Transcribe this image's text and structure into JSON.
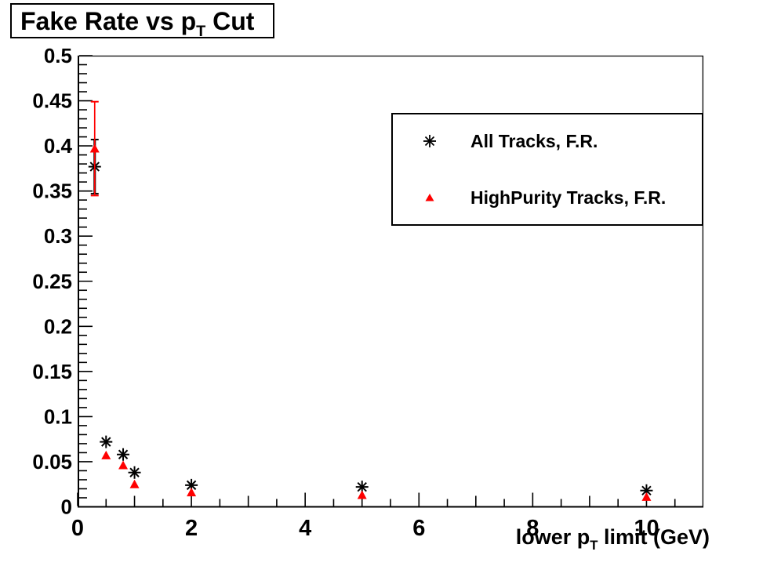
{
  "title": {
    "pre": "Fake Rate vs p",
    "sub": "T",
    "post": " Cut"
  },
  "x_axis_title": {
    "pre": "lower p",
    "sub": "T",
    "post": " limit (GeV)"
  },
  "colors": {
    "background": "#ffffff",
    "frame": "#000000",
    "series_all_tracks": "#000000",
    "series_highpurity": "#ff0000"
  },
  "chart_data": {
    "type": "scatter",
    "title": "Fake Rate vs p_T Cut",
    "xlabel": "lower p_T limit (GeV)",
    "ylabel": "",
    "xlim": [
      0,
      11
    ],
    "ylim": [
      0,
      0.5
    ],
    "grid": false,
    "legend_position": "top-right",
    "x_minor_step": 0.5,
    "y_minor_step": 0.01,
    "xticks": [
      {
        "v": 0,
        "label": "0"
      },
      {
        "v": 2,
        "label": "2"
      },
      {
        "v": 4,
        "label": "4"
      },
      {
        "v": 6,
        "label": "6"
      },
      {
        "v": 8,
        "label": "8"
      },
      {
        "v": 10,
        "label": "10"
      }
    ],
    "yticks": [
      {
        "v": 0,
        "label": "0"
      },
      {
        "v": 0.05,
        "label": "0.05"
      },
      {
        "v": 0.1,
        "label": "0.1"
      },
      {
        "v": 0.15,
        "label": "0.15"
      },
      {
        "v": 0.2,
        "label": "0.2"
      },
      {
        "v": 0.25,
        "label": "0.25"
      },
      {
        "v": 0.3,
        "label": "0.3"
      },
      {
        "v": 0.35,
        "label": "0.35"
      },
      {
        "v": 0.4,
        "label": "0.4"
      },
      {
        "v": 0.45,
        "label": "0.45"
      },
      {
        "v": 0.5,
        "label": "0.5"
      }
    ],
    "series": [
      {
        "name": "All Tracks, F.R.",
        "marker": "asterisk",
        "color": "#000000",
        "points": [
          {
            "x": 0.3,
            "y": 0.377,
            "yerr": 0.03
          },
          {
            "x": 0.5,
            "y": 0.072
          },
          {
            "x": 0.8,
            "y": 0.058
          },
          {
            "x": 1.0,
            "y": 0.038
          },
          {
            "x": 2.0,
            "y": 0.024
          },
          {
            "x": 5.0,
            "y": 0.022
          },
          {
            "x": 10.0,
            "y": 0.018
          }
        ]
      },
      {
        "name": "HighPurity Tracks, F.R.",
        "marker": "triangle",
        "color": "#ff0000",
        "points": [
          {
            "x": 0.3,
            "y": 0.397,
            "yerr": 0.052
          },
          {
            "x": 0.5,
            "y": 0.057
          },
          {
            "x": 0.8,
            "y": 0.046
          },
          {
            "x": 1.0,
            "y": 0.025
          },
          {
            "x": 2.0,
            "y": 0.016
          },
          {
            "x": 5.0,
            "y": 0.013
          },
          {
            "x": 10.0,
            "y": 0.011
          }
        ]
      }
    ]
  }
}
